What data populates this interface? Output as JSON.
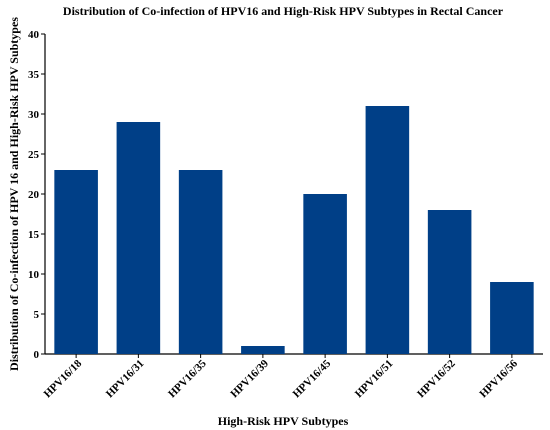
{
  "chart_data": {
    "type": "bar",
    "title": "Distribution of Co-infection of HPV16 and High-Risk HPV  Subtypes in Rectal Cancer",
    "xlabel": "High-Risk HPV Subtypes",
    "ylabel": "Distribution of Co-infection of HPV 16 and High-Risk HPV Subtypes",
    "categories": [
      "HPV16/18",
      "HPV16/31",
      "HPV16/35",
      "HPV16/39",
      "HPV16/45",
      "HPV16/51",
      "HPV16/52",
      "HPV16/56"
    ],
    "values": [
      23,
      29,
      23,
      1,
      20,
      31,
      18,
      9
    ],
    "ylim": [
      0,
      40
    ],
    "yticks": [
      "0",
      "5",
      "10",
      "15",
      "20",
      "25",
      "30",
      "35",
      "40"
    ],
    "bar_color": "#003f87",
    "grid": false,
    "legend": "none"
  }
}
